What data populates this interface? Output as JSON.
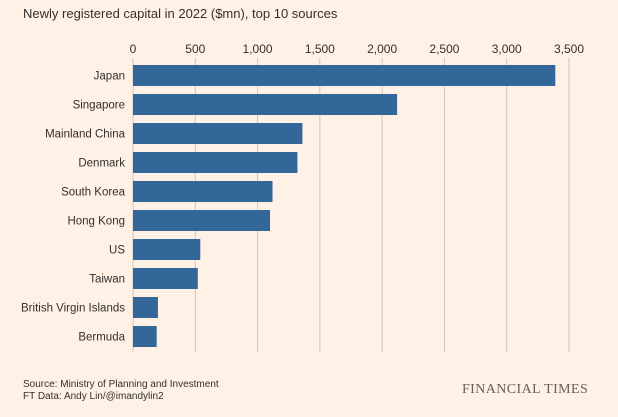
{
  "chart_data": {
    "type": "bar",
    "orientation": "horizontal",
    "title": "Newly registered capital in 2022 ($mn), top 10 sources",
    "categories": [
      "Japan",
      "Singapore",
      "Mainland China",
      "Denmark",
      "South Korea",
      "Hong Kong",
      "US",
      "Taiwan",
      "British Virgin Islands",
      "Bermuda"
    ],
    "values": [
      3390,
      2120,
      1360,
      1320,
      1120,
      1100,
      540,
      520,
      200,
      190
    ],
    "xlim": [
      0,
      3500
    ],
    "ticks": [
      0,
      500,
      1000,
      1500,
      2000,
      2500,
      3000,
      3500
    ],
    "tick_labels": [
      "0",
      "500",
      "1,000",
      "1,500",
      "2,000",
      "2,500",
      "3,000",
      "3,500"
    ],
    "xlabel": "",
    "ylabel": "",
    "grid": "vertical",
    "axis_position": "top",
    "bar_color": "#336699",
    "grid_color": "#CEC6B9"
  },
  "footer": {
    "source_line": "Source: Ministry of Planning and Investment",
    "credit_line": "FT Data: Andy Lin/@imandylin2",
    "brand": "FINANCIAL TIMES"
  }
}
